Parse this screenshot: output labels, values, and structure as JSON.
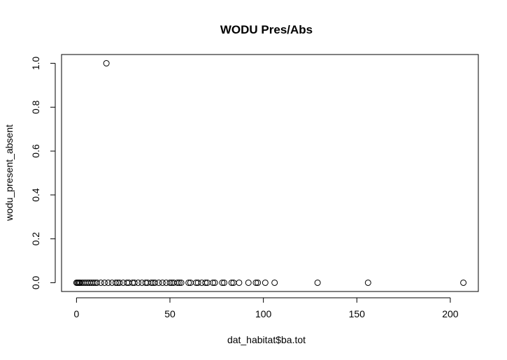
{
  "chart_data": {
    "type": "scatter",
    "title": "WODU Pres/Abs",
    "xlabel": "dat_habitat$ba.tot",
    "ylabel": "wodu_present_absent",
    "xlim": [
      -8,
      215
    ],
    "ylim": [
      -0.04,
      1.04
    ],
    "xticks": [
      0,
      50,
      100,
      150,
      200
    ],
    "xtick_labels": [
      "0",
      "50",
      "100",
      "150",
      "200"
    ],
    "yticks": [
      0.0,
      0.2,
      0.4,
      0.6,
      0.8,
      1.0
    ],
    "ytick_labels": [
      "0.0",
      "0.2",
      "0.4",
      "0.6",
      "0.8",
      "1.0"
    ],
    "grid": false,
    "marker": "open-circle",
    "points": [
      {
        "x": 0,
        "y": 0
      },
      {
        "x": 0.5,
        "y": 0
      },
      {
        "x": 1,
        "y": 0
      },
      {
        "x": 1.5,
        "y": 0
      },
      {
        "x": 2,
        "y": 0
      },
      {
        "x": 3,
        "y": 0
      },
      {
        "x": 4,
        "y": 0
      },
      {
        "x": 5,
        "y": 0
      },
      {
        "x": 6,
        "y": 0
      },
      {
        "x": 7,
        "y": 0
      },
      {
        "x": 8,
        "y": 0
      },
      {
        "x": 9,
        "y": 0
      },
      {
        "x": 10,
        "y": 0
      },
      {
        "x": 11,
        "y": 0
      },
      {
        "x": 13,
        "y": 0
      },
      {
        "x": 15,
        "y": 0
      },
      {
        "x": 16,
        "y": 1
      },
      {
        "x": 17,
        "y": 0
      },
      {
        "x": 19,
        "y": 0
      },
      {
        "x": 21,
        "y": 0
      },
      {
        "x": 22,
        "y": 0
      },
      {
        "x": 23,
        "y": 0
      },
      {
        "x": 25,
        "y": 0
      },
      {
        "x": 27,
        "y": 0
      },
      {
        "x": 28,
        "y": 0
      },
      {
        "x": 30,
        "y": 0
      },
      {
        "x": 31,
        "y": 0
      },
      {
        "x": 33,
        "y": 0
      },
      {
        "x": 35,
        "y": 0
      },
      {
        "x": 37,
        "y": 0
      },
      {
        "x": 38,
        "y": 0
      },
      {
        "x": 40,
        "y": 0
      },
      {
        "x": 41,
        "y": 0
      },
      {
        "x": 42,
        "y": 0
      },
      {
        "x": 44,
        "y": 0
      },
      {
        "x": 46,
        "y": 0
      },
      {
        "x": 48,
        "y": 0
      },
      {
        "x": 50,
        "y": 0
      },
      {
        "x": 51,
        "y": 0
      },
      {
        "x": 52,
        "y": 0
      },
      {
        "x": 54,
        "y": 0
      },
      {
        "x": 55,
        "y": 0
      },
      {
        "x": 56,
        "y": 0
      },
      {
        "x": 60,
        "y": 0
      },
      {
        "x": 61,
        "y": 0
      },
      {
        "x": 64,
        "y": 0
      },
      {
        "x": 65,
        "y": 0
      },
      {
        "x": 67,
        "y": 0
      },
      {
        "x": 69,
        "y": 0
      },
      {
        "x": 70,
        "y": 0
      },
      {
        "x": 73,
        "y": 0
      },
      {
        "x": 74,
        "y": 0
      },
      {
        "x": 78,
        "y": 0
      },
      {
        "x": 79,
        "y": 0
      },
      {
        "x": 83,
        "y": 0
      },
      {
        "x": 84,
        "y": 0
      },
      {
        "x": 87,
        "y": 0
      },
      {
        "x": 92,
        "y": 0
      },
      {
        "x": 96,
        "y": 0
      },
      {
        "x": 97,
        "y": 0
      },
      {
        "x": 101,
        "y": 0
      },
      {
        "x": 106,
        "y": 0
      },
      {
        "x": 129,
        "y": 0
      },
      {
        "x": 156,
        "y": 0
      },
      {
        "x": 207,
        "y": 0
      }
    ]
  }
}
